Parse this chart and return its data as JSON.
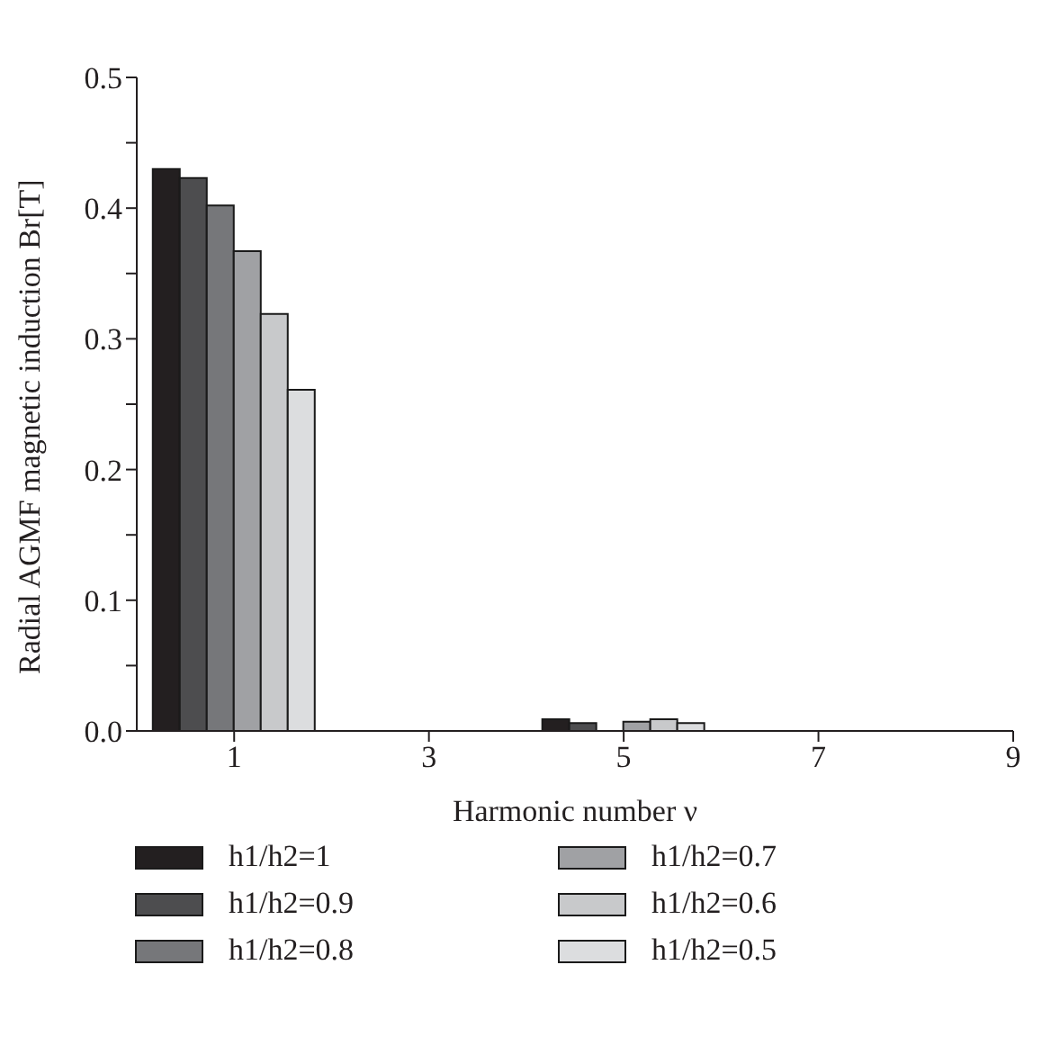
{
  "chart_data": {
    "type": "bar",
    "xlabel": "Harmonic number ν",
    "ylabel": "Radial AGMF magnetic induction Br[T]",
    "x": [
      1,
      5
    ],
    "xlim": [
      0,
      9
    ],
    "xticks": [
      1,
      3,
      5,
      7,
      9
    ],
    "ylim": [
      0,
      0.5
    ],
    "yticks": [
      {
        "value": 0,
        "label": "0.0"
      },
      {
        "value": 0.05,
        "label": null
      },
      0.1,
      {
        "value": 0.15,
        "label": null
      },
      0.2,
      {
        "value": 0.25,
        "label": null
      },
      0.3,
      {
        "value": 0.35,
        "label": null
      },
      0.4,
      {
        "value": 0.45,
        "label": null
      },
      0.5
    ],
    "grid": false,
    "legend": "bottom",
    "series": [
      {
        "name": "h1/h2=1",
        "color": "#231f20",
        "values": [
          0.43,
          0.009
        ]
      },
      {
        "name": "h1/h2=0.9",
        "color": "#4d4d4f",
        "values": [
          0.423,
          0.006
        ]
      },
      {
        "name": "h1/h2=0.8",
        "color": "#76777a",
        "values": [
          0.402,
          0
        ]
      },
      {
        "name": "h1/h2=0.7",
        "color": "#a0a1a4",
        "values": [
          0.367,
          0.007
        ]
      },
      {
        "name": "h1/h2=0.6",
        "color": "#c8c9cb",
        "values": [
          0.319,
          0.009
        ]
      },
      {
        "name": "h1/h2=0.5",
        "color": "#dcdddf",
        "values": [
          0.261,
          0.006
        ]
      }
    ]
  }
}
